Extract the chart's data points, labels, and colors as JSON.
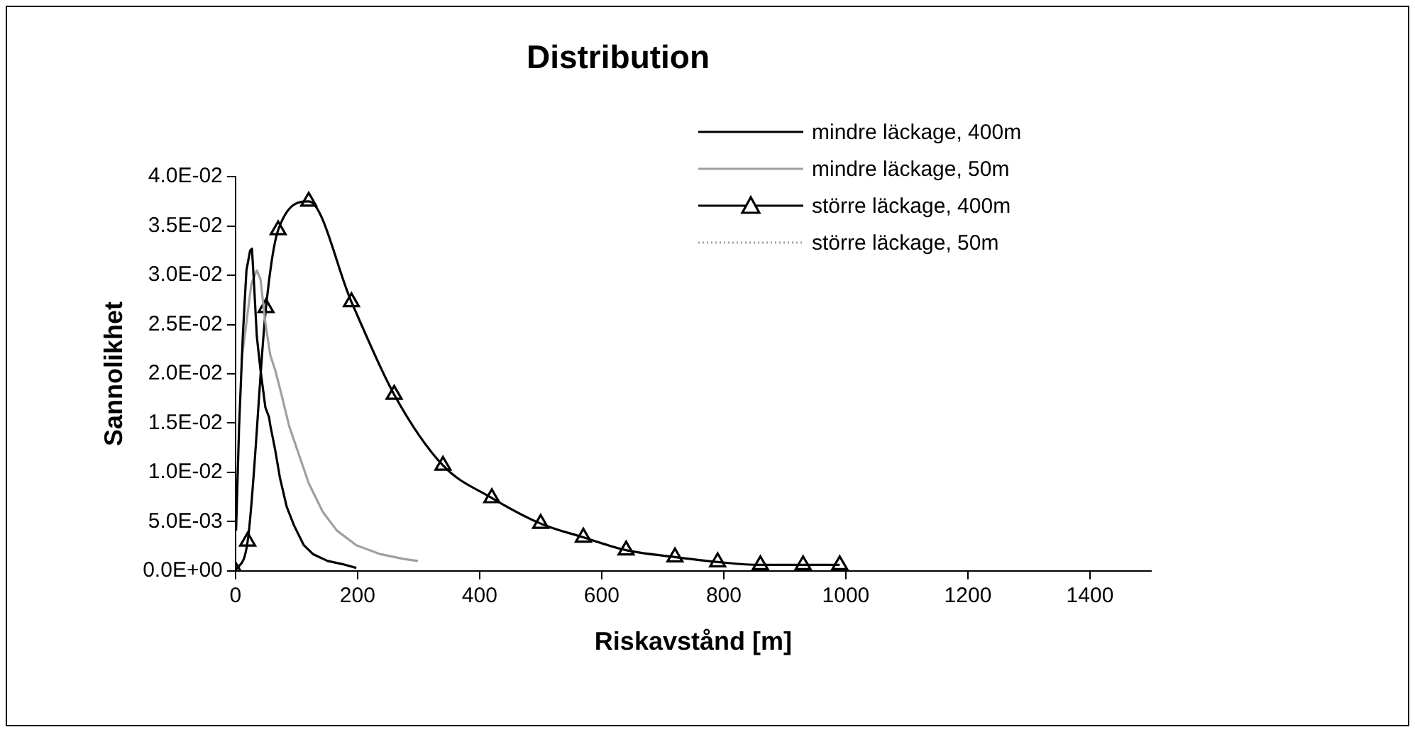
{
  "chart_data": {
    "type": "line",
    "title": "Distribution",
    "xlabel": "Riskavstånd [m]",
    "ylabel": "Sannolikhet",
    "xlim": [
      0,
      1500
    ],
    "xticks": [
      0,
      200,
      400,
      600,
      800,
      1000,
      1200,
      1400
    ],
    "ylim": [
      0,
      0.04
    ],
    "yticks": [
      {
        "value": 0,
        "label": "0.0E+00"
      },
      {
        "value": 0.005,
        "label": "5.0E-03"
      },
      {
        "value": 0.01,
        "label": "1.0E-02"
      },
      {
        "value": 0.015,
        "label": "1.5E-02"
      },
      {
        "value": 0.02,
        "label": "2.0E-02"
      },
      {
        "value": 0.025,
        "label": "2.5E-02"
      },
      {
        "value": 0.03,
        "label": "3.0E-02"
      },
      {
        "value": 0.035,
        "label": "3.5E-02"
      },
      {
        "value": 0.04,
        "label": "4.0E-02"
      }
    ],
    "grid": false,
    "legend": "top right",
    "series": [
      {
        "name": "mindre läckage, 400m",
        "color": "#000000",
        "marker": "none",
        "line_style": "solid",
        "x": [
          1,
          6,
          12,
          18,
          24,
          27,
          30,
          35,
          41,
          49,
          55,
          57,
          65,
          73,
          84,
          96,
          112,
          127,
          151,
          174,
          198
        ],
        "values": [
          0.0041,
          0.0147,
          0.0238,
          0.0305,
          0.0325,
          0.0327,
          0.0296,
          0.0238,
          0.0204,
          0.0166,
          0.0156,
          0.0148,
          0.0123,
          0.0094,
          0.0065,
          0.0046,
          0.0026,
          0.0017,
          0.001,
          0.0007,
          0.0003
        ]
      },
      {
        "name": "mindre läckage, 50m",
        "color": "#a0a0a0",
        "marker": "none",
        "line_style": "solid",
        "x": [
          10,
          18,
          26,
          35,
          41,
          49,
          57,
          65,
          73,
          88,
          104,
          120,
          143,
          166,
          198,
          237,
          276,
          299
        ],
        "values": [
          0.0214,
          0.0252,
          0.0291,
          0.0305,
          0.0296,
          0.0252,
          0.0219,
          0.0204,
          0.0185,
          0.0147,
          0.0118,
          0.0089,
          0.006,
          0.0041,
          0.0026,
          0.0017,
          0.0012,
          0.001
        ]
      },
      {
        "name": "större läckage, 400m",
        "color": "#000000",
        "marker": "triangle",
        "line_style": "solid",
        "x": [
          0,
          20,
          50,
          70,
          120,
          190,
          260,
          340,
          420,
          500,
          570,
          640,
          720,
          790,
          860,
          930,
          990
        ],
        "values": [
          0,
          0.003,
          0.0267,
          0.0346,
          0.0375,
          0.0273,
          0.0179,
          0.0107,
          0.0074,
          0.0048,
          0.0034,
          0.0021,
          0.0014,
          0.0009,
          0.0006,
          0.0006,
          0.0006
        ]
      },
      {
        "name": "större läckage, 50m",
        "color": "#a0a0a0",
        "marker": "none",
        "line_style": "dotted"
      }
    ]
  }
}
